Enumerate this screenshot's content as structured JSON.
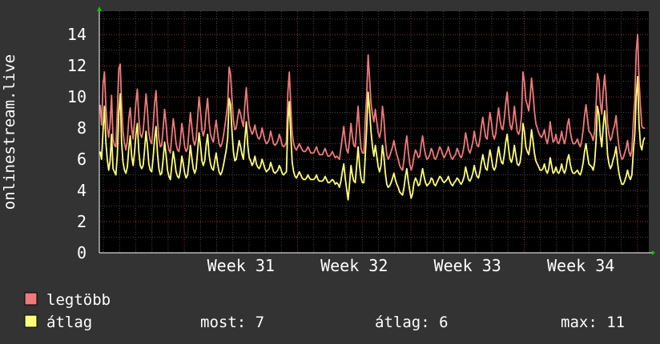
{
  "chart_data": {
    "type": "line",
    "title": "",
    "ylabel": "onlinestream.live",
    "xlabel": "",
    "ylim": [
      0,
      15.5
    ],
    "yticks": [
      0,
      2,
      4,
      6,
      8,
      10,
      12,
      14
    ],
    "grid": true,
    "x_range_weeks": [
      30.25,
      35.1
    ],
    "week_ticks": [
      {
        "label": "Week 31",
        "week": 31
      },
      {
        "label": "Week 32",
        "week": 32
      },
      {
        "label": "Week 33",
        "week": 33
      },
      {
        "label": "Week 34",
        "week": 34
      }
    ],
    "series": [
      {
        "name": "legtöbb",
        "color": "#f07a7a",
        "values": [
          9.5,
          8.2,
          10.8,
          11.6,
          9.4,
          8.1,
          7.4,
          8.3,
          10.1,
          7.3,
          6.9,
          6.8,
          9.1,
          11.8,
          12.1,
          9.6,
          7.8,
          7.0,
          6.6,
          7.2,
          8.6,
          9.3,
          8.0,
          7.3,
          8.4,
          9.7,
          10.5,
          8.7,
          7.6,
          7.4,
          7.8,
          8.9,
          10.2,
          9.1,
          7.7,
          7.2,
          7.0,
          8.1,
          9.6,
          10.4,
          8.5,
          7.3,
          6.8,
          6.9,
          8.0,
          9.2,
          8.3,
          7.1,
          6.6,
          6.4,
          7.5,
          8.6,
          7.9,
          7.0,
          6.6,
          6.5,
          7.2,
          8.3,
          7.6,
          6.8,
          6.5,
          6.7,
          7.8,
          9.0,
          8.1,
          7.2,
          6.9,
          7.3,
          8.6,
          10.0,
          9.1,
          7.9,
          7.5,
          7.9,
          9.1,
          9.9,
          8.4,
          7.6,
          7.3,
          7.1,
          7.9,
          8.5,
          7.7,
          7.0,
          6.8,
          7.0,
          7.5,
          8.1,
          8.8,
          9.6,
          11.9,
          11.5,
          9.9,
          8.5,
          7.9,
          8.0,
          8.7,
          9.2,
          8.9,
          8.4,
          8.1,
          9.5,
          10.6,
          9.1,
          8.2,
          7.9,
          7.6,
          7.8,
          8.2,
          7.7,
          7.4,
          7.3,
          7.5,
          8.0,
          7.6,
          7.2,
          7.0,
          7.1,
          7.3,
          7.8,
          7.4,
          7.0,
          6.9,
          7.0,
          7.2,
          7.6,
          7.3,
          6.9,
          6.8,
          6.9,
          7.1,
          10.3,
          11.6,
          9.5,
          7.7,
          7.0,
          6.7,
          6.6,
          6.8,
          7.0,
          6.8,
          6.6,
          6.5,
          6.5,
          6.6,
          6.8,
          6.6,
          6.4,
          6.4,
          6.4,
          6.6,
          6.8,
          6.5,
          6.3,
          6.3,
          6.3,
          6.5,
          6.7,
          6.4,
          6.2,
          6.2,
          6.3,
          6.5,
          6.3,
          6.1,
          6.2,
          6.1,
          6.0,
          6.7,
          7.4,
          8.1,
          7.2,
          6.6,
          6.4,
          7.2,
          8.3,
          7.5,
          6.9,
          6.8,
          8.1,
          9.4,
          7.9,
          6.7,
          6.4,
          6.4,
          8.6,
          10.1,
          12.7,
          11.2,
          9.6,
          8.9,
          8.4,
          9.2,
          8.4,
          7.7,
          7.4,
          7.9,
          9.4,
          8.6,
          7.2,
          6.3,
          6.0,
          6.2,
          6.5,
          6.8,
          7.2,
          6.7,
          6.3,
          6.0,
          5.6,
          5.4,
          5.3,
          6.0,
          6.9,
          7.5,
          6.5,
          5.7,
          5.3,
          5.6,
          6.2,
          6.6,
          6.4,
          6.1,
          6.2,
          6.9,
          7.5,
          6.8,
          6.3,
          6.0,
          6.1,
          6.3,
          6.7,
          6.5,
          6.1,
          6.0,
          6.2,
          6.5,
          6.8,
          6.6,
          6.3,
          6.1,
          6.3,
          6.5,
          6.8,
          6.4,
          6.1,
          6.0,
          6.2,
          6.3,
          6.7,
          6.5,
          6.2,
          6.1,
          6.4,
          6.9,
          7.7,
          7.2,
          6.6,
          6.4,
          6.7,
          7.1,
          7.8,
          7.3,
          6.9,
          6.8,
          7.3,
          8.1,
          8.7,
          8.0,
          7.4,
          7.3,
          8.2,
          9.0,
          8.4,
          7.6,
          7.3,
          7.6,
          8.5,
          9.3,
          8.5,
          8.0,
          7.9,
          8.6,
          9.6,
          10.3,
          9.1,
          8.2,
          7.9,
          8.4,
          9.4,
          8.6,
          7.8,
          7.6,
          7.9,
          8.8,
          11.6,
          11.0,
          9.8,
          9.5,
          9.1,
          9.9,
          11.2,
          10.3,
          9.1,
          8.3,
          8.0,
          7.7,
          7.5,
          7.4,
          7.6,
          7.9,
          7.3,
          7.0,
          7.5,
          8.4,
          7.7,
          7.1,
          7.2,
          7.6,
          7.1,
          7.0,
          7.3,
          7.8,
          7.3,
          7.0,
          7.4,
          8.2,
          8.6,
          7.8,
          7.3,
          7.0,
          7.0,
          7.1,
          7.3,
          7.0,
          6.8,
          7.2,
          7.9,
          8.8,
          9.5,
          8.6,
          7.8,
          7.7,
          7.5,
          7.2,
          7.8,
          9.5,
          11.5,
          11.1,
          9.6,
          8.9,
          10.4,
          11.4,
          10.2,
          8.3,
          7.6,
          7.2,
          7.4,
          7.9,
          8.2,
          8.8,
          7.6,
          6.8,
          6.3,
          6.0,
          6.1,
          6.4,
          6.7,
          7.2,
          6.5,
          6.2,
          6.6,
          8.4,
          9.8,
          12.9,
          14.0,
          11.1,
          9.4,
          8.1,
          8.0,
          8.0
        ]
      },
      {
        "name": "átlag",
        "color": "#ffff7a",
        "values": [
          6.5,
          6.0,
          7.8,
          9.4,
          7.1,
          6.0,
          5.3,
          5.9,
          7.6,
          5.4,
          5.2,
          5.0,
          6.3,
          9.0,
          10.2,
          7.1,
          5.8,
          5.3,
          5.1,
          5.5,
          6.7,
          7.5,
          6.2,
          5.6,
          6.4,
          7.6,
          8.3,
          6.5,
          5.6,
          5.4,
          5.6,
          6.6,
          7.8,
          6.8,
          5.7,
          5.3,
          5.2,
          6.1,
          7.3,
          8.1,
          6.4,
          5.4,
          5.0,
          5.1,
          6.0,
          7.1,
          6.3,
          5.3,
          4.9,
          4.7,
          5.6,
          6.5,
          5.9,
          5.2,
          4.9,
          4.8,
          5.3,
          6.2,
          5.7,
          5.1,
          4.8,
          5.0,
          5.8,
          6.9,
          6.1,
          5.4,
          5.1,
          5.4,
          6.5,
          7.7,
          6.9,
          5.9,
          5.6,
          5.9,
          6.9,
          7.6,
          6.3,
          5.7,
          5.4,
          5.3,
          5.9,
          6.4,
          5.7,
          5.2,
          5.0,
          5.2,
          5.6,
          6.1,
          6.6,
          7.4,
          9.9,
          9.5,
          7.8,
          6.5,
          5.9,
          6.0,
          6.6,
          7.2,
          6.8,
          6.3,
          6.0,
          7.3,
          8.4,
          6.9,
          6.1,
          5.9,
          5.6,
          5.8,
          6.2,
          5.7,
          5.5,
          5.4,
          5.6,
          6.0,
          5.7,
          5.4,
          5.2,
          5.3,
          5.4,
          5.8,
          5.5,
          5.2,
          5.1,
          5.2,
          5.3,
          5.6,
          5.4,
          5.1,
          5.0,
          5.1,
          5.2,
          8.4,
          9.7,
          7.6,
          5.8,
          5.2,
          4.9,
          4.8,
          5.0,
          5.2,
          5.0,
          4.8,
          4.7,
          4.7,
          4.8,
          5.0,
          4.8,
          4.7,
          4.7,
          4.7,
          4.8,
          5.0,
          4.7,
          4.6,
          4.6,
          4.6,
          4.7,
          4.9,
          4.7,
          4.5,
          4.5,
          4.6,
          4.7,
          4.6,
          4.4,
          4.5,
          4.4,
          4.2,
          4.6,
          5.2,
          5.7,
          4.8,
          4.1,
          3.4,
          4.4,
          5.6,
          5.0,
          4.6,
          4.5,
          5.6,
          6.8,
          5.6,
          4.8,
          4.5,
          4.5,
          6.3,
          8.0,
          10.3,
          9.2,
          7.8,
          6.8,
          6.2,
          6.9,
          6.2,
          5.5,
          5.2,
          5.6,
          6.9,
          6.2,
          5.1,
          4.4,
          4.2,
          4.3,
          4.5,
          4.8,
          5.1,
          4.7,
          4.4,
          4.2,
          3.9,
          3.8,
          3.7,
          4.2,
          4.9,
          5.4,
          4.6,
          4.0,
          3.5,
          3.8,
          4.5,
          4.8,
          4.6,
          4.3,
          4.4,
          4.9,
          5.4,
          4.9,
          4.5,
          4.3,
          4.4,
          4.5,
          4.8,
          4.7,
          4.4,
          4.3,
          4.5,
          4.7,
          4.9,
          4.8,
          4.6,
          4.5,
          4.6,
          4.7,
          4.9,
          4.6,
          4.4,
          4.3,
          4.5,
          4.6,
          4.8,
          4.7,
          4.5,
          4.4,
          4.6,
          4.9,
          5.5,
          5.1,
          4.7,
          4.6,
          4.8,
          5.1,
          5.6,
          5.2,
          4.9,
          4.8,
          5.2,
          5.8,
          6.3,
          5.8,
          5.4,
          5.3,
          6.0,
          6.6,
          6.1,
          5.5,
          5.3,
          5.5,
          6.2,
          6.8,
          6.2,
          5.8,
          5.7,
          6.3,
          7.1,
          7.6,
          6.7,
          6.0,
          5.8,
          6.2,
          6.9,
          6.3,
          5.7,
          5.6,
          5.8,
          6.5,
          8.3,
          7.8,
          6.8,
          6.5,
          6.3,
          6.9,
          7.9,
          7.2,
          6.4,
          5.9,
          5.7,
          5.5,
          5.3,
          5.3,
          5.4,
          5.7,
          5.3,
          5.1,
          5.4,
          6.1,
          5.6,
          5.1,
          5.2,
          5.5,
          5.2,
          5.1,
          5.3,
          5.7,
          5.3,
          5.1,
          5.4,
          6.0,
          6.3,
          5.7,
          5.3,
          5.1,
          5.1,
          5.2,
          5.3,
          5.1,
          5.0,
          5.3,
          5.8,
          6.5,
          7.0,
          6.3,
          5.7,
          5.6,
          5.5,
          5.3,
          5.8,
          7.2,
          9.4,
          8.9,
          7.5,
          6.8,
          8.1,
          9.1,
          8.0,
          6.3,
          5.7,
          5.4,
          5.6,
          6.0,
          6.3,
          6.8,
          5.8,
          5.1,
          4.7,
          4.4,
          4.4,
          4.6,
          4.9,
          5.3,
          4.9,
          4.7,
          5.0,
          6.5,
          7.6,
          10.0,
          11.3,
          8.3,
          6.9,
          6.6,
          7.2,
          7.4
        ]
      }
    ]
  },
  "legend": {
    "items": [
      {
        "label": "legtöbb",
        "color": "#f07a7a"
      },
      {
        "label": "átlag",
        "color": "#ffff7a"
      }
    ],
    "stats": {
      "now": "most: 7",
      "avg": "átlag: 6",
      "max": "max: 11"
    }
  }
}
